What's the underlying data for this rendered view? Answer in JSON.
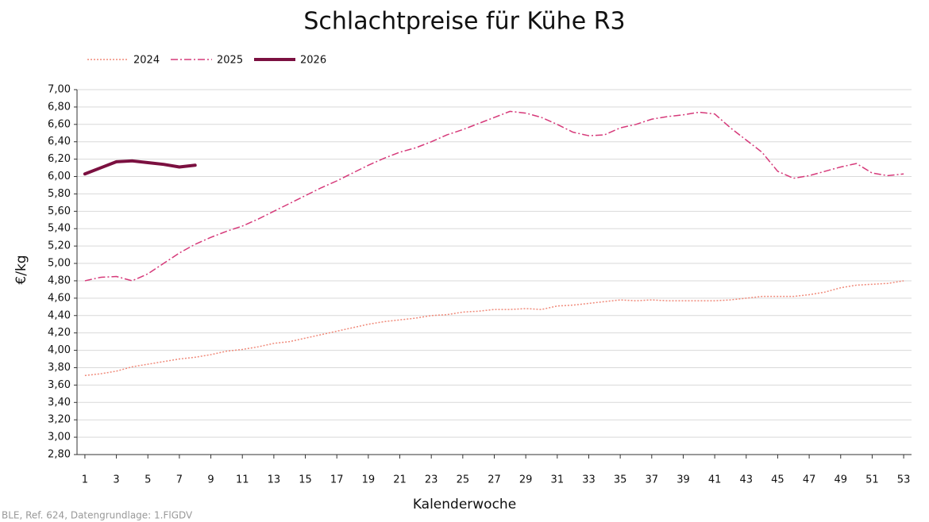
{
  "chart_data": {
    "type": "line",
    "title": "Schlachtpreise für Kühe R3",
    "x_label": "Kalenderwoche",
    "y_label": "€/kg",
    "source": "BLE, Ref. 624, Datengrundlage: 1.FlGDV",
    "x": [
      1,
      2,
      3,
      4,
      5,
      6,
      7,
      8,
      9,
      10,
      11,
      12,
      13,
      14,
      15,
      16,
      17,
      18,
      19,
      20,
      21,
      22,
      23,
      24,
      25,
      26,
      27,
      28,
      29,
      30,
      31,
      32,
      33,
      34,
      35,
      36,
      37,
      38,
      39,
      40,
      41,
      42,
      43,
      44,
      45,
      46,
      47,
      48,
      49,
      50,
      51,
      52,
      53
    ],
    "xlim": [
      0.5,
      53.5
    ],
    "xticks": [
      1,
      3,
      5,
      7,
      9,
      11,
      13,
      15,
      17,
      19,
      21,
      23,
      25,
      27,
      29,
      31,
      33,
      35,
      37,
      39,
      41,
      43,
      45,
      47,
      49,
      51,
      53
    ],
    "ylim": [
      2.8,
      7.0
    ],
    "yticks": [
      {
        "value": 2.8,
        "label": "2,80"
      },
      {
        "value": 3.0,
        "label": "3,00"
      },
      {
        "value": 3.2,
        "label": "3,20"
      },
      {
        "value": 3.4,
        "label": "3,40"
      },
      {
        "value": 3.6,
        "label": "3,60"
      },
      {
        "value": 3.8,
        "label": "3,80"
      },
      {
        "value": 4.0,
        "label": "4,00"
      },
      {
        "value": 4.2,
        "label": "4,20"
      },
      {
        "value": 4.4,
        "label": "4,40"
      },
      {
        "value": 4.6,
        "label": "4,60"
      },
      {
        "value": 4.8,
        "label": "4,80"
      },
      {
        "value": 5.0,
        "label": "5,00"
      },
      {
        "value": 5.2,
        "label": "5,20"
      },
      {
        "value": 5.4,
        "label": "5,40"
      },
      {
        "value": 5.6,
        "label": "5,60"
      },
      {
        "value": 5.8,
        "label": "5,80"
      },
      {
        "value": 6.0,
        "label": "6,00"
      },
      {
        "value": 6.2,
        "label": "6,20"
      },
      {
        "value": 6.4,
        "label": "6,40"
      },
      {
        "value": 6.6,
        "label": "6,60"
      },
      {
        "value": 6.8,
        "label": "6,80"
      },
      {
        "value": 7.0,
        "label": "7,00"
      }
    ],
    "grid": true,
    "legend": "top-left",
    "series": [
      {
        "name": "2024",
        "color": "#f08a7a",
        "style": "dotted",
        "width": 1.5,
        "values": [
          3.71,
          3.73,
          3.76,
          3.81,
          3.84,
          3.87,
          3.9,
          3.92,
          3.95,
          3.99,
          4.01,
          4.04,
          4.08,
          4.1,
          4.14,
          4.18,
          4.22,
          4.26,
          4.3,
          4.33,
          4.35,
          4.37,
          4.4,
          4.41,
          4.44,
          4.45,
          4.47,
          4.47,
          4.48,
          4.47,
          4.51,
          4.52,
          4.54,
          4.56,
          4.58,
          4.57,
          4.58,
          4.57,
          4.57,
          4.57,
          4.57,
          4.58,
          4.6,
          4.62,
          4.62,
          4.62,
          4.64,
          4.67,
          4.72,
          4.75,
          4.76,
          4.77,
          4.8
        ]
      },
      {
        "name": "2025",
        "color": "#d63a7a",
        "style": "dashdot",
        "width": 1.5,
        "values": [
          4.8,
          4.84,
          4.85,
          4.8,
          4.88,
          5.0,
          5.12,
          5.22,
          5.3,
          5.37,
          5.43,
          5.51,
          5.6,
          5.69,
          5.78,
          5.87,
          5.95,
          6.04,
          6.13,
          6.21,
          6.28,
          6.33,
          6.4,
          6.48,
          6.54,
          6.61,
          6.68,
          6.75,
          6.73,
          6.68,
          6.6,
          6.51,
          6.47,
          6.48,
          6.56,
          6.6,
          6.66,
          6.69,
          6.71,
          6.74,
          6.72,
          6.56,
          6.42,
          6.28,
          6.06,
          5.98,
          6.01,
          6.06,
          6.11,
          6.15,
          6.04,
          6.01,
          6.03
        ]
      },
      {
        "name": "2026",
        "color": "#7b1040",
        "style": "solid",
        "width": 4,
        "values": [
          6.03,
          6.1,
          6.17,
          6.18,
          6.16,
          6.14,
          6.11,
          6.13,
          null,
          null,
          null,
          null,
          null,
          null,
          null,
          null,
          null,
          null,
          null,
          null,
          null,
          null,
          null,
          null,
          null,
          null,
          null,
          null,
          null,
          null,
          null,
          null,
          null,
          null,
          null,
          null,
          null,
          null,
          null,
          null,
          null,
          null,
          null,
          null,
          null,
          null,
          null,
          null,
          null,
          null,
          null,
          null,
          null
        ]
      }
    ]
  }
}
